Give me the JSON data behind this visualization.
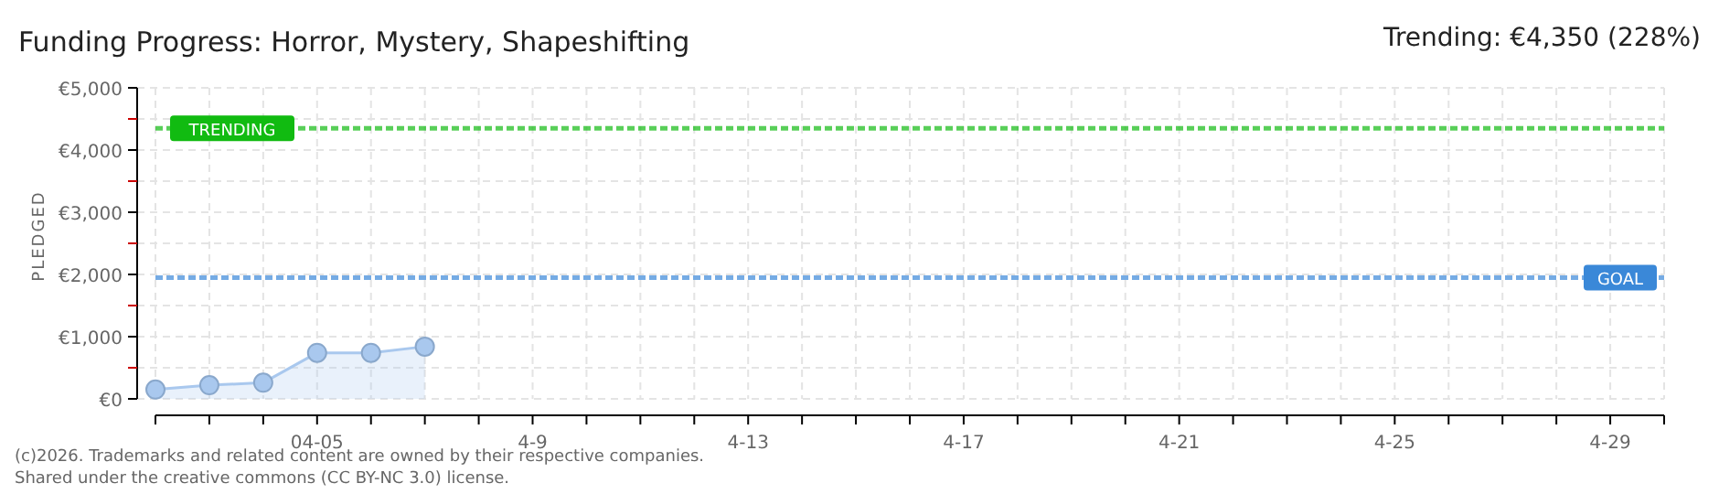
{
  "chart_data": {
    "type": "area",
    "title": "Funding Progress: Horror, Mystery, Shapeshifting",
    "subtitle": "Trending: €4,350 (228%)",
    "ylabel": "PLEDGED",
    "x": [
      "--04-02",
      "--04-03",
      "--04-04",
      "--04-05",
      "--04-06",
      "--04-07"
    ],
    "series": [
      {
        "color": "#a9c8ee",
        "values": [
          150,
          220,
          260,
          740,
          740,
          840
        ]
      }
    ],
    "xlim": [
      "--04-02",
      "--04-30"
    ],
    "xticks": [
      {
        "value": "--04-02",
        "label": null
      },
      {
        "value": "--04-03",
        "label": null
      },
      {
        "value": "--04-04",
        "label": null
      },
      {
        "value": "--04-05",
        "label": "04-05"
      },
      {
        "value": "--04-06",
        "label": null
      },
      {
        "value": "--04-07",
        "label": null
      },
      {
        "value": "--04-08",
        "label": null
      },
      {
        "value": "--04-09",
        "label": "4-9"
      },
      {
        "value": "--04-10",
        "label": null
      },
      {
        "value": "--04-11",
        "label": null
      },
      {
        "value": "--04-12",
        "label": null
      },
      {
        "value": "--04-13",
        "label": "4-13"
      },
      {
        "value": "--04-14",
        "label": null
      },
      {
        "value": "--04-15",
        "label": null
      },
      {
        "value": "--04-16",
        "label": null
      },
      {
        "value": "--04-17",
        "label": "4-17"
      },
      {
        "value": "--04-18",
        "label": null
      },
      {
        "value": "--04-19",
        "label": null
      },
      {
        "value": "--04-20",
        "label": null
      },
      {
        "value": "--04-21",
        "label": "4-21"
      },
      {
        "value": "--04-22",
        "label": null
      },
      {
        "value": "--04-23",
        "label": null
      },
      {
        "value": "--04-24",
        "label": null
      },
      {
        "value": "--04-25",
        "label": "4-25"
      },
      {
        "value": "--04-26",
        "label": null
      },
      {
        "value": "--04-27",
        "label": null
      },
      {
        "value": "--04-28",
        "label": null
      },
      {
        "value": "--04-29",
        "label": "4-29"
      },
      {
        "value": "--04-30",
        "label": null
      }
    ],
    "ylim": [
      0,
      5000
    ],
    "yticks": [
      {
        "value": 0,
        "label": "€0"
      },
      {
        "value": 500,
        "label": null
      },
      {
        "value": 1000,
        "label": "€1,000"
      },
      {
        "value": 1500,
        "label": null
      },
      {
        "value": 2000,
        "label": "€2,000"
      },
      {
        "value": 2500,
        "label": null
      },
      {
        "value": 3000,
        "label": "€3,000"
      },
      {
        "value": 3500,
        "label": null
      },
      {
        "value": 4000,
        "label": "€4,000"
      },
      {
        "value": 4500,
        "label": null
      },
      {
        "value": 5000,
        "label": "€5,000"
      }
    ],
    "grid": true,
    "marker": "circle",
    "ref_lines": [
      {
        "axis": "y",
        "value": 4350,
        "label": "TRENDING",
        "color": "#11bb11",
        "line_style": "dashed"
      },
      {
        "axis": "y",
        "value": 1950,
        "label": "GOAL",
        "color": "#3a88d8",
        "line_style": "dashed"
      }
    ],
    "annotations": [
      "(c)2026. Trademarks and related content are owned by their respective companies.",
      "Shared under the creative commons (CC BY-NC 3.0) license."
    ]
  }
}
